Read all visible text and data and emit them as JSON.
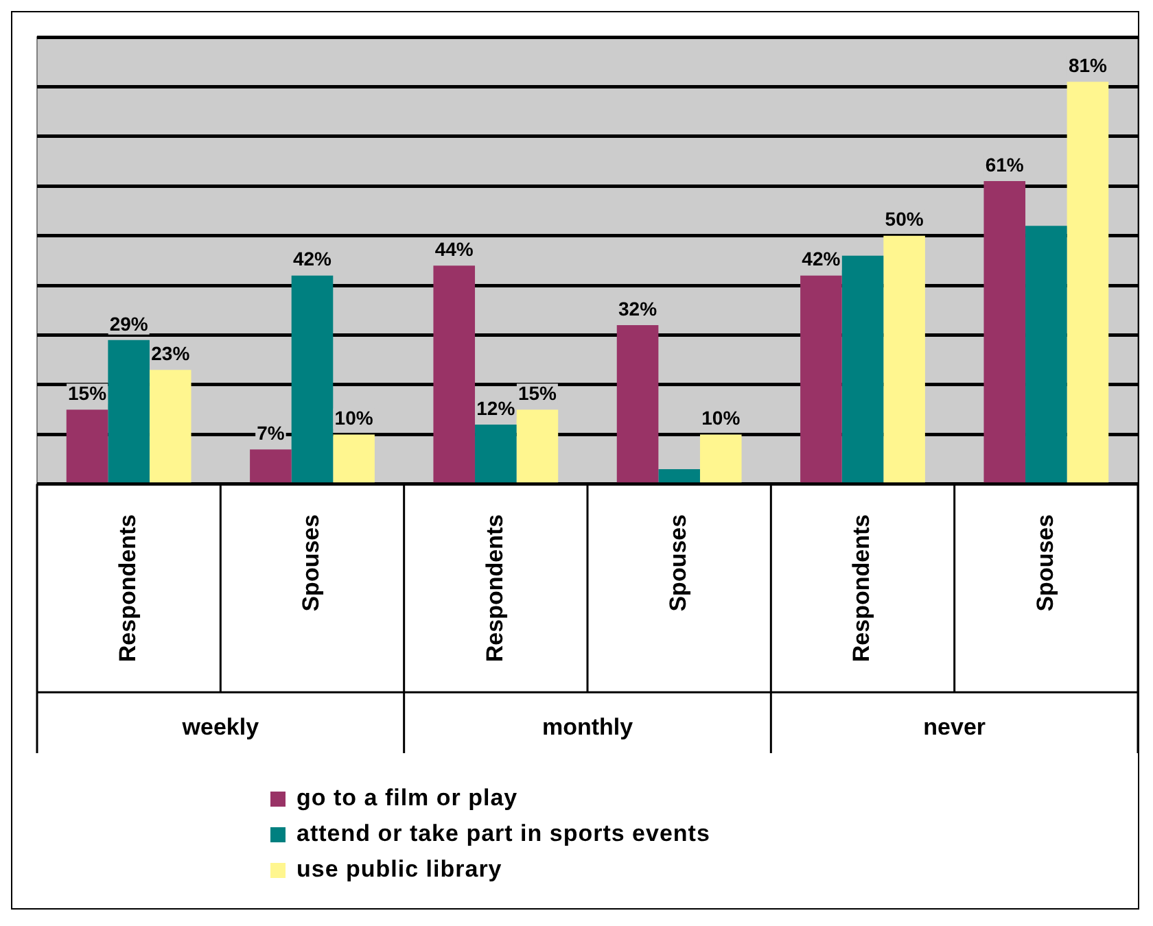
{
  "chart_data": {
    "type": "bar",
    "categories": [
      "Respondents",
      "Spouses",
      "Respondents",
      "Spouses",
      "Respondents",
      "Spouses"
    ],
    "annotations": [
      "weekly",
      "monthly",
      "never"
    ],
    "series": [
      {
        "name": "go to a film or play",
        "color": "#993366",
        "values": [
          15,
          7,
          44,
          32,
          42,
          61
        ],
        "value_labels": [
          "15%",
          "7%",
          "44%",
          "32%",
          "42%",
          "61%"
        ]
      },
      {
        "name": "attend or take part in sports events",
        "color": "#008080",
        "values": [
          29,
          42,
          12,
          3,
          46,
          52
        ],
        "value_labels": [
          "29%",
          "42%",
          "12%",
          null,
          null,
          null
        ]
      },
      {
        "name": "use public library",
        "color": "#fff68f",
        "values": [
          23,
          10,
          15,
          10,
          50,
          81
        ],
        "value_labels": [
          "23%",
          "10%",
          "15%",
          "10%",
          "50%",
          "81%"
        ]
      }
    ],
    "ylim": [
      0,
      90
    ],
    "yticks": [
      {
        "value": 0,
        "label": null
      },
      {
        "value": 10,
        "label": null
      },
      {
        "value": 20,
        "label": null
      },
      {
        "value": 30,
        "label": null
      },
      {
        "value": 40,
        "label": null
      },
      {
        "value": 50,
        "label": null
      },
      {
        "value": 60,
        "label": null
      },
      {
        "value": 70,
        "label": null
      },
      {
        "value": 80,
        "label": null
      },
      {
        "value": 90,
        "label": null
      }
    ],
    "grid": "y",
    "legend": "bottom"
  }
}
